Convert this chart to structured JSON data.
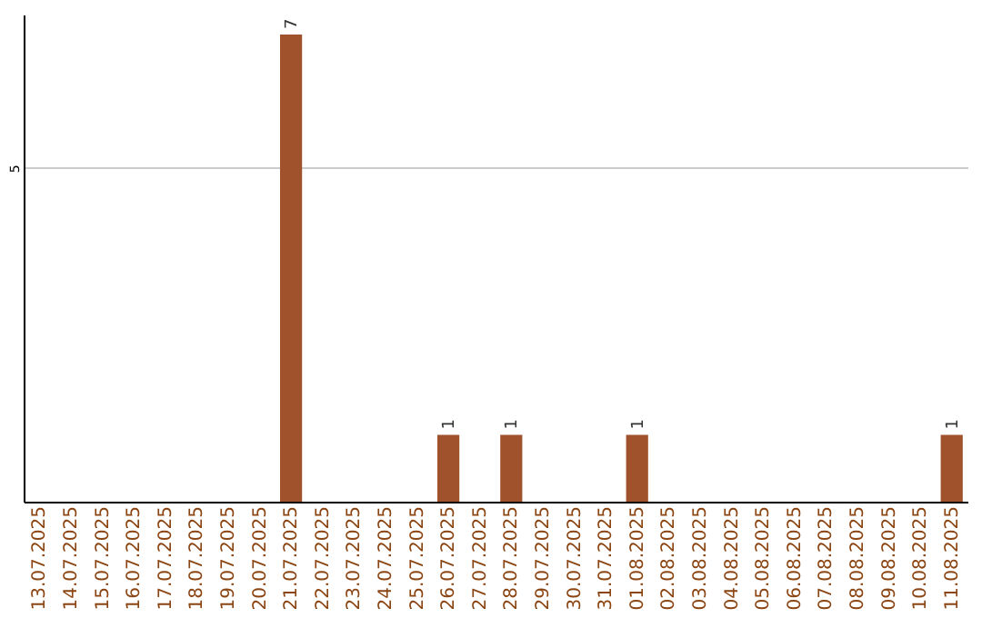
{
  "chart_data": {
    "type": "bar",
    "categories": [
      "13.07.2025",
      "14.07.2025",
      "15.07.2025",
      "16.07.2025",
      "17.07.2025",
      "18.07.2025",
      "19.07.2025",
      "20.07.2025",
      "21.07.2025",
      "22.07.2025",
      "23.07.2025",
      "24.07.2025",
      "25.07.2025",
      "26.07.2025",
      "27.07.2025",
      "28.07.2025",
      "29.07.2025",
      "30.07.2025",
      "31.07.2025",
      "01.08.2025",
      "02.08.2025",
      "03.08.2025",
      "04.08.2025",
      "05.08.2025",
      "06.08.2025",
      "07.08.2025",
      "08.08.2025",
      "09.08.2025",
      "10.08.2025",
      "11.08.2025"
    ],
    "values": [
      0,
      0,
      0,
      0,
      0,
      0,
      0,
      0,
      7,
      0,
      0,
      0,
      0,
      1,
      0,
      1,
      0,
      0,
      0,
      1,
      0,
      0,
      0,
      0,
      0,
      0,
      0,
      0,
      0,
      1
    ],
    "value_labels": [
      null,
      null,
      null,
      null,
      null,
      null,
      null,
      null,
      "7",
      null,
      null,
      null,
      null,
      "1",
      null,
      "1",
      null,
      null,
      null,
      "1",
      null,
      null,
      null,
      null,
      null,
      null,
      null,
      null,
      null,
      "1"
    ],
    "color": "#a0522d",
    "ylim": [
      0,
      7.3
    ],
    "yticks": [
      5
    ],
    "grid": "y"
  }
}
